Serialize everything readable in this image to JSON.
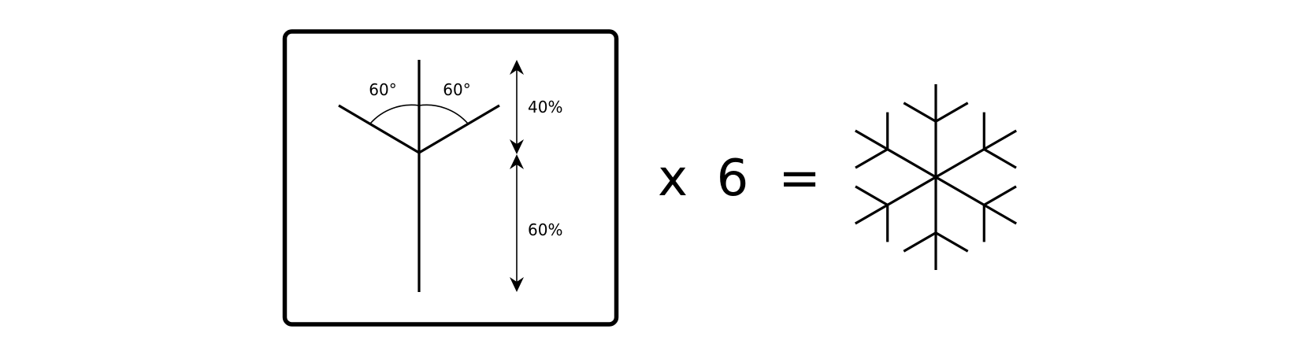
{
  "diagram": {
    "angle_left": "60°",
    "angle_right": "60°",
    "upper_share": "40%",
    "lower_share": "60%",
    "multiplier_symbol": "x",
    "multiplier_value": "6",
    "equals_symbol": "=",
    "arm_count": 6,
    "branch_angle_degrees": 60
  },
  "colors": {
    "stroke": "#000000",
    "background": "#ffffff"
  }
}
